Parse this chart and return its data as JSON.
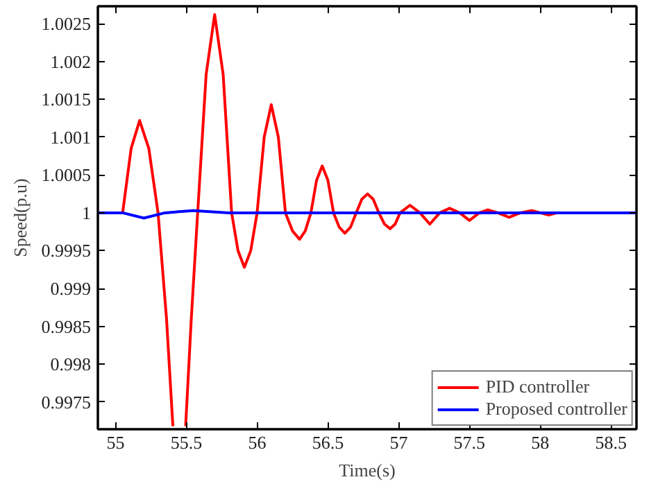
{
  "chart_data": {
    "type": "line",
    "xlabel": "Time(s)",
    "ylabel": "Speed(p.u)",
    "xlim": [
      54.875,
      58.68
    ],
    "ylim": [
      0.99714,
      1.00273
    ],
    "xticks": [
      55,
      55.5,
      56,
      56.5,
      57,
      57.5,
      58,
      58.5
    ],
    "yticks": [
      0.9975,
      0.998,
      0.9985,
      0.999,
      0.9995,
      1,
      1.0005,
      1.001,
      1.0015,
      1.002,
      1.0025
    ],
    "grid": false,
    "legend": "bottom right",
    "line_style": "solid",
    "series": [
      {
        "name": "PID controller",
        "color": "#ff0000",
        "x": [
          54.875,
          55.05,
          55.11,
          55.17,
          55.235,
          55.3,
          55.36,
          55.405,
          55.45,
          55.495,
          55.535,
          55.58,
          55.64,
          55.7,
          55.76,
          55.82,
          55.865,
          55.91,
          55.955,
          56.0,
          56.05,
          56.1,
          56.15,
          56.2,
          56.25,
          56.3,
          56.34,
          56.38,
          56.42,
          56.46,
          56.5,
          56.54,
          56.58,
          56.62,
          56.66,
          56.7,
          56.74,
          56.78,
          56.82,
          56.86,
          56.9,
          56.94,
          56.975,
          57.01,
          57.08,
          57.15,
          57.22,
          57.29,
          57.36,
          57.43,
          57.5,
          57.57,
          57.63,
          57.7,
          57.78,
          57.86,
          57.94,
          58.0,
          58.06,
          58.12
        ],
        "values": [
          1,
          1,
          1.00085,
          1.00122,
          1.00085,
          1,
          0.9986,
          0.99718,
          null,
          0.99718,
          0.9986,
          1,
          1.00183,
          1.00262,
          1.00183,
          1,
          0.9995,
          0.99928,
          0.9995,
          1,
          1.001,
          1.00143,
          1.001,
          1,
          0.99976,
          0.99965,
          0.99976,
          1,
          1.00043,
          1.00062,
          1.00043,
          1,
          0.99981,
          0.99973,
          0.99981,
          1,
          1.00018,
          1.00025,
          1.00018,
          1,
          0.99985,
          0.99979,
          0.99985,
          1,
          1.0001,
          1,
          0.99985,
          1,
          1.00006,
          1,
          0.9999,
          1,
          1.00004,
          1,
          0.99994,
          1,
          1.00003,
          1,
          0.99997,
          1
        ]
      },
      {
        "name": "Proposed controller",
        "color": "#0000ff",
        "x": [
          54.875,
          55.05,
          55.2,
          55.35,
          55.55,
          55.8,
          58.68
        ],
        "values": [
          1,
          1,
          0.99993,
          1,
          1.00003,
          1,
          1
        ]
      }
    ]
  }
}
